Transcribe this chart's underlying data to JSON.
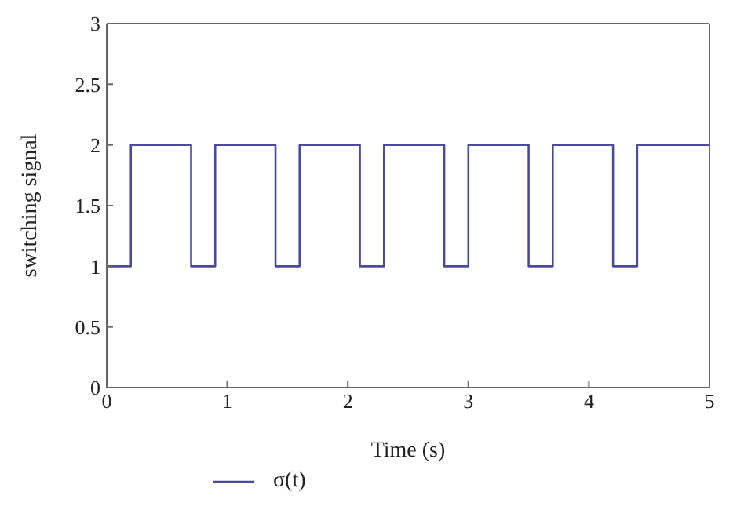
{
  "chart_data": {
    "type": "step",
    "xlabel": "Time (s)",
    "ylabel": "switching signal",
    "x": [
      0,
      0.2,
      0.7,
      0.9,
      1.4,
      1.6,
      2.1,
      2.3,
      2.8,
      3.0,
      3.5,
      3.7,
      4.2,
      4.4,
      5
    ],
    "series": [
      {
        "name": "σ(t)",
        "color": "#4b4b9b",
        "values": [
          1,
          2,
          1,
          2,
          1,
          2,
          1,
          2,
          1,
          2,
          1,
          2,
          1,
          2,
          2
        ]
      }
    ],
    "xlim": [
      0,
      5
    ],
    "xticks": [
      0,
      1,
      2,
      3,
      4,
      5
    ],
    "ylim": [
      0,
      3
    ],
    "yticks": [
      0,
      0.5,
      1,
      1.5,
      2,
      2.5,
      3
    ],
    "grid": false,
    "legend": "bottom left",
    "marker": "none",
    "line_style": "solid"
  }
}
